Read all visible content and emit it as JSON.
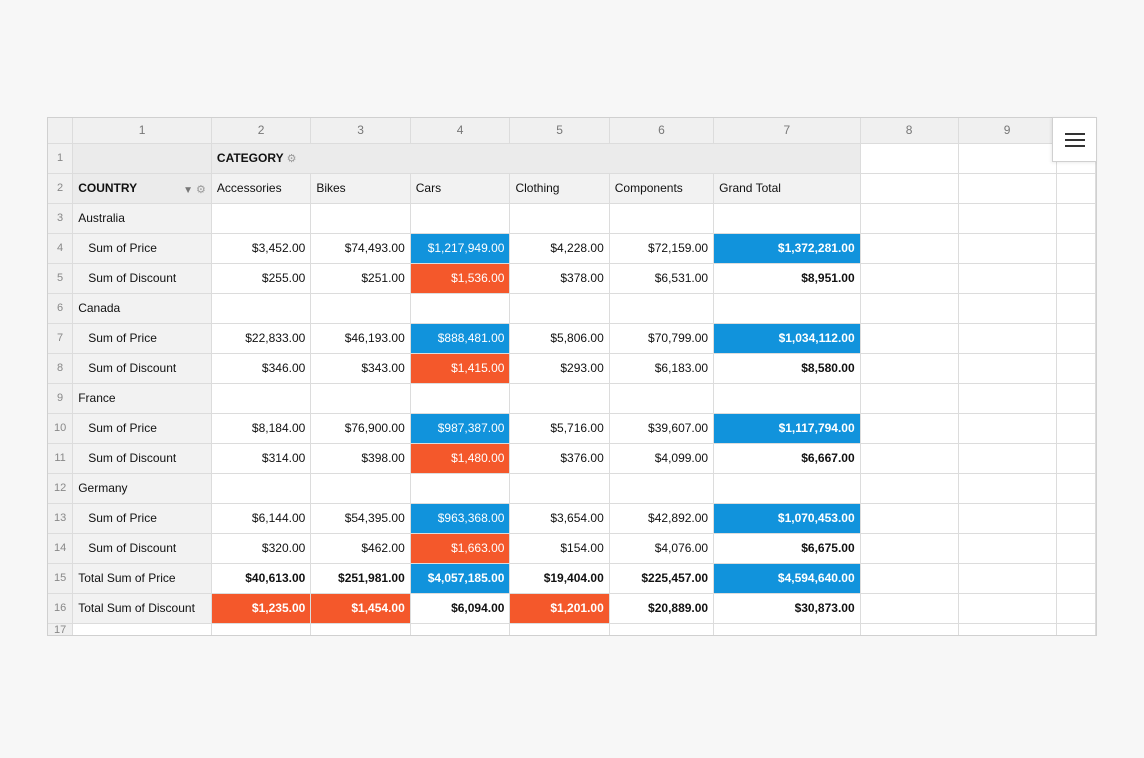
{
  "column_headers": [
    "1",
    "2",
    "3",
    "4",
    "5",
    "6",
    "7",
    "8",
    "9"
  ],
  "row_numbers": [
    "1",
    "2",
    "3",
    "4",
    "5",
    "6",
    "7",
    "8",
    "9",
    "10",
    "11",
    "12",
    "13",
    "14",
    "15",
    "16",
    "17"
  ],
  "pivot": {
    "category_label": "CATEGORY",
    "country_label": "COUNTRY",
    "categories": [
      "Accessories",
      "Bikes",
      "Cars",
      "Clothing",
      "Components",
      "Grand Total"
    ],
    "rows": [
      {
        "label": "Australia",
        "values": [
          "",
          "",
          "",
          "",
          "",
          ""
        ]
      },
      {
        "label": "Sum of Price",
        "values": [
          "$3,452.00",
          "$74,493.00",
          "$1,217,949.00",
          "$4,228.00",
          "$72,159.00",
          "$1,372,281.00"
        ]
      },
      {
        "label": "Sum of Discount",
        "values": [
          "$255.00",
          "$251.00",
          "$1,536.00",
          "$378.00",
          "$6,531.00",
          "$8,951.00"
        ]
      },
      {
        "label": "Canada",
        "values": [
          "",
          "",
          "",
          "",
          "",
          ""
        ]
      },
      {
        "label": "Sum of Price",
        "values": [
          "$22,833.00",
          "$46,193.00",
          "$888,481.00",
          "$5,806.00",
          "$70,799.00",
          "$1,034,112.00"
        ]
      },
      {
        "label": "Sum of Discount",
        "values": [
          "$346.00",
          "$343.00",
          "$1,415.00",
          "$293.00",
          "$6,183.00",
          "$8,580.00"
        ]
      },
      {
        "label": "France",
        "values": [
          "",
          "",
          "",
          "",
          "",
          ""
        ]
      },
      {
        "label": "Sum of Price",
        "values": [
          "$8,184.00",
          "$76,900.00",
          "$987,387.00",
          "$5,716.00",
          "$39,607.00",
          "$1,117,794.00"
        ]
      },
      {
        "label": "Sum of Discount",
        "values": [
          "$314.00",
          "$398.00",
          "$1,480.00",
          "$376.00",
          "$4,099.00",
          "$6,667.00"
        ]
      },
      {
        "label": "Germany",
        "values": [
          "",
          "",
          "",
          "",
          "",
          ""
        ]
      },
      {
        "label": "Sum of Price",
        "values": [
          "$6,144.00",
          "$54,395.00",
          "$963,368.00",
          "$3,654.00",
          "$42,892.00",
          "$1,070,453.00"
        ]
      },
      {
        "label": "Sum of Discount",
        "values": [
          "$320.00",
          "$462.00",
          "$1,663.00",
          "$154.00",
          "$4,076.00",
          "$6,675.00"
        ]
      },
      {
        "label": "Total Sum of Price",
        "values": [
          "$40,613.00",
          "$251,981.00",
          "$4,057,185.00",
          "$19,404.00",
          "$225,457.00",
          "$4,594,640.00"
        ]
      },
      {
        "label": "Total Sum of Discount",
        "values": [
          "$1,235.00",
          "$1,454.00",
          "$6,094.00",
          "$1,201.00",
          "$20,889.00",
          "$30,873.00"
        ]
      }
    ]
  },
  "icons": {
    "category_settings": "gear-icon",
    "country_filter": "filter-icon",
    "country_settings": "gear-icon",
    "menu": "hamburger-menu-icon"
  },
  "colors": {
    "highlight_blue": "#1193dc",
    "highlight_red": "#f4582b"
  }
}
